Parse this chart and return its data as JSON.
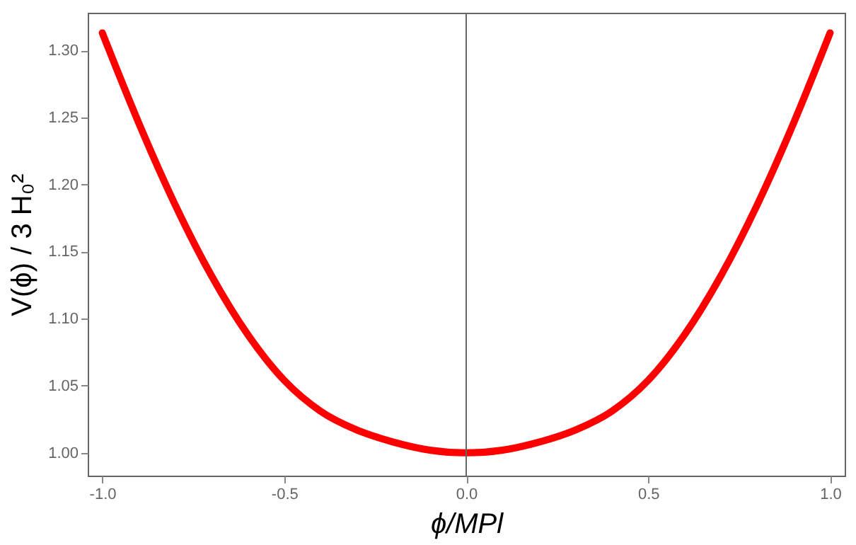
{
  "chart_data": {
    "type": "line",
    "xlabel": "ϕ/MPl",
    "ylabel": "V(ϕ) / 3 H₀²",
    "x": [
      -1.0,
      -0.9,
      -0.8,
      -0.7,
      -0.6,
      -0.5,
      -0.4,
      -0.3,
      -0.2,
      -0.1,
      0.0,
      0.1,
      0.2,
      0.3,
      0.4,
      0.5,
      0.6,
      0.7,
      0.8,
      0.9,
      1.0
    ],
    "series": [
      {
        "color": "#ff0000",
        "values": [
          1.313,
          1.246,
          1.185,
          1.132,
          1.088,
          1.054,
          1.031,
          1.017,
          1.008,
          1.002,
          1.0,
          1.002,
          1.008,
          1.017,
          1.031,
          1.054,
          1.088,
          1.132,
          1.185,
          1.246,
          1.313
        ]
      }
    ],
    "xlim": [
      -1.04,
      1.04
    ],
    "ylim": [
      0.983,
      1.328
    ],
    "xticks": [
      {
        "value": -1.0,
        "label": "-1.0"
      },
      {
        "value": -0.5,
        "label": "-0.5"
      },
      {
        "value": 0,
        "label": "0.0"
      },
      {
        "value": 0.5,
        "label": "0.5"
      },
      {
        "value": 1.0,
        "label": "1.0"
      }
    ],
    "yticks": [
      {
        "value": 1.0,
        "label": "1.00"
      },
      {
        "value": 1.05,
        "label": "1.05"
      },
      {
        "value": 1.1,
        "label": "1.10"
      },
      {
        "value": 1.15,
        "label": "1.15"
      },
      {
        "value": 1.2,
        "label": "1.20"
      },
      {
        "value": 1.25,
        "label": "1.25"
      },
      {
        "value": 1.3,
        "label": "1.30"
      }
    ],
    "ref_lines": [
      {
        "axis": "x",
        "value": 0,
        "color": "#666666"
      }
    ],
    "grid": false,
    "marker": "none",
    "line_style": "solid"
  }
}
